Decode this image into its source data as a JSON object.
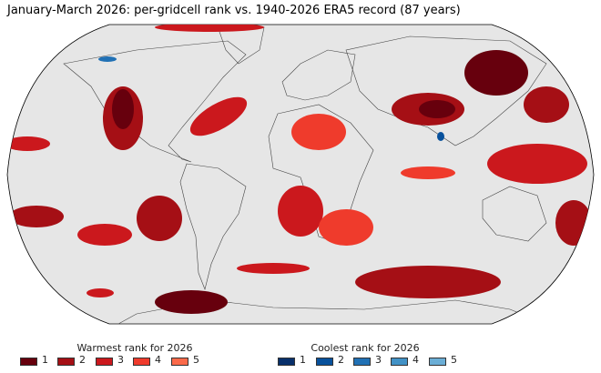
{
  "title": "January-March 2026: per-gridcell rank vs. 1940-2026 ERA5 record (87 years)",
  "legend_warm": {
    "title": "Warmest rank for 2026",
    "items": [
      {
        "label": "1",
        "color": "#67000d"
      },
      {
        "label": "2",
        "color": "#a50f15"
      },
      {
        "label": "3",
        "color": "#cb181d"
      },
      {
        "label": "4",
        "color": "#ef3b2c"
      },
      {
        "label": "5",
        "color": "#fb6a4a"
      }
    ]
  },
  "legend_cool": {
    "title": "Coolest rank for 2026",
    "items": [
      {
        "label": "1",
        "color": "#08306b"
      },
      {
        "label": "2",
        "color": "#08519c"
      },
      {
        "label": "3",
        "color": "#2171b5"
      },
      {
        "label": "4",
        "color": "#4292c6"
      },
      {
        "label": "5",
        "color": "#6baed6"
      }
    ]
  },
  "map": {
    "projection": "Robinson",
    "background": "#e6e6e6",
    "land_outline": "#333333"
  }
}
